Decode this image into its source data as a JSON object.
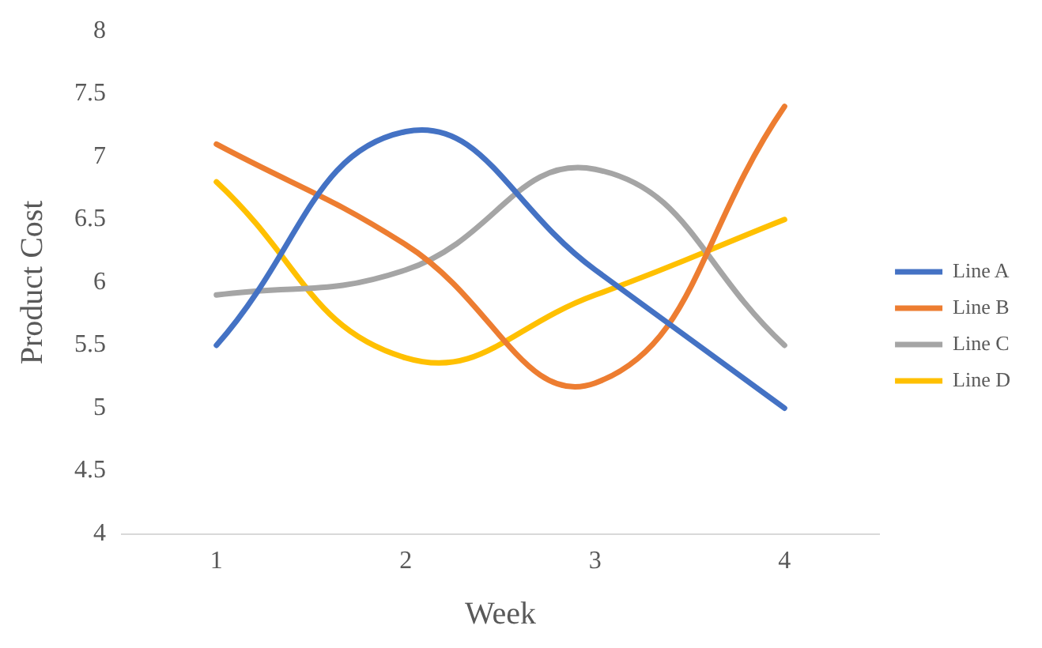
{
  "chart_data": {
    "type": "line",
    "xlabel": "Week",
    "ylabel": "Product Cost",
    "categories": [
      "1",
      "2",
      "3",
      "4"
    ],
    "series": [
      {
        "name": "Line A",
        "color": "#4472c4",
        "values": [
          5.5,
          7.2,
          6.1,
          5
        ]
      },
      {
        "name": "Line B",
        "color": "#ed7d31",
        "values": [
          7.1,
          6.3,
          5.2,
          7.4
        ]
      },
      {
        "name": "Line C",
        "color": "#a5a5a5",
        "values": [
          5.9,
          6.1,
          6.9,
          5.5
        ]
      },
      {
        "name": "Line D",
        "color": "#ffc000",
        "values": [
          6.8,
          5.4,
          5.9,
          6.5
        ]
      }
    ],
    "ylim": [
      4,
      8
    ],
    "yticks": [
      4,
      4.5,
      5,
      5.5,
      6,
      6.5,
      7,
      7.5,
      8
    ],
    "grid": false,
    "legend": "right",
    "marker": "none",
    "line_style": "solid"
  }
}
